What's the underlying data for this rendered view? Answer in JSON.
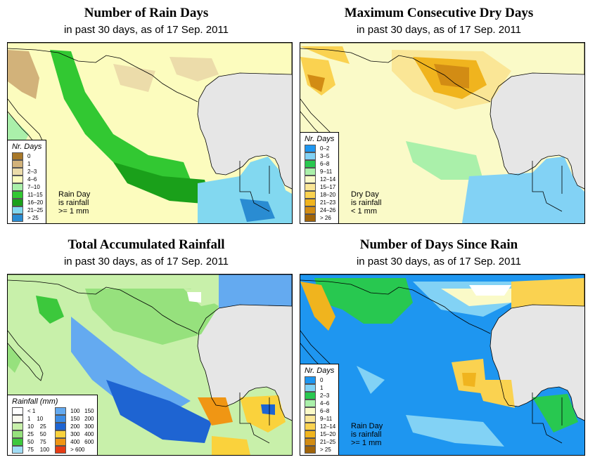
{
  "panels": [
    {
      "title": "Number of Rain Days",
      "subtitle": "in past 30 days, as of  17 Sep. 2011",
      "legend_title": "Nr. Days",
      "legend": [
        {
          "label": "0",
          "color": "#a8782a"
        },
        {
          "label": "1",
          "color": "#d2b27a"
        },
        {
          "label": "2–3",
          "color": "#ecdcaa"
        },
        {
          "label": "4–6",
          "color": "#fcfcbe"
        },
        {
          "label": "7–10",
          "color": "#aaf0aa"
        },
        {
          "label": "11–15",
          "color": "#32c832"
        },
        {
          "label": "16–20",
          "color": "#1aa01a"
        },
        {
          "label": "21–25",
          "color": "#82d8f0"
        },
        {
          "label": "> 25",
          "color": "#2a8cd2"
        }
      ],
      "note": [
        "Rain Day",
        "is rainfall",
        ">= 1 mm"
      ]
    },
    {
      "title": "Maximum Consecutive Dry Days",
      "subtitle": "in past 30 days, as of  17 Sep. 2011",
      "legend_title": "Nr. Days",
      "legend": [
        {
          "label": "0–2",
          "color": "#1e96f0"
        },
        {
          "label": "3–5",
          "color": "#82d2f5"
        },
        {
          "label": "6–8",
          "color": "#28c850"
        },
        {
          "label": "9–11",
          "color": "#aaf0aa"
        },
        {
          "label": "12–14",
          "color": "#fafac8"
        },
        {
          "label": "15–17",
          "color": "#fae696"
        },
        {
          "label": "18–20",
          "color": "#fad250"
        },
        {
          "label": "21–23",
          "color": "#f0b41e"
        },
        {
          "label": "24–26",
          "color": "#d28c14"
        },
        {
          "label": "> 26",
          "color": "#a0640a"
        }
      ],
      "note": [
        "Dry Day",
        "is rainfall",
        "< 1 mm"
      ]
    },
    {
      "title": "Total Accumulated Rainfall",
      "subtitle": "in past 30 days, as of  17 Sep. 2011",
      "legend_title": "Rainfall (mm)",
      "legend": [
        {
          "label": "< 1",
          "color": "#ffffff"
        },
        {
          "label": "1    10",
          "color": "#fafaf0"
        },
        {
          "label": "10    25",
          "color": "#c8f0aa"
        },
        {
          "label": "25    50",
          "color": "#96e17d"
        },
        {
          "label": "50    75",
          "color": "#3cc83c"
        },
        {
          "label": "75    100",
          "color": "#a0dcf5"
        },
        {
          "label": "100   150",
          "color": "#64aaf0"
        },
        {
          "label": "150   200",
          "color": "#3c8ce6"
        },
        {
          "label": "200   300",
          "color": "#1e64d2"
        },
        {
          "label": "300   400",
          "color": "#fad23c"
        },
        {
          "label": "400   600",
          "color": "#f09614"
        },
        {
          "label": "> 600",
          "color": "#e63c14"
        }
      ],
      "note": []
    },
    {
      "title": "Number of Days Since Rain",
      "subtitle": "in past 30 days, as of  17 Sep. 2011",
      "legend_title": "Nr. Days",
      "legend": [
        {
          "label": "0",
          "color": "#1e96f0"
        },
        {
          "label": "1",
          "color": "#82d2f5"
        },
        {
          "label": "2–3",
          "color": "#28c850"
        },
        {
          "label": "4–6",
          "color": "#aaf0aa"
        },
        {
          "label": "6–8",
          "color": "#fafac8"
        },
        {
          "label": "9–11",
          "color": "#fae696"
        },
        {
          "label": "12–14",
          "color": "#fad250"
        },
        {
          "label": "15–20",
          "color": "#f0b41e"
        },
        {
          "label": "21–25",
          "color": "#d28c14"
        },
        {
          "label": "> 25",
          "color": "#a0640a"
        }
      ],
      "note": [
        "Rain Day",
        "is rainfall",
        ">= 1 mm"
      ]
    }
  ]
}
